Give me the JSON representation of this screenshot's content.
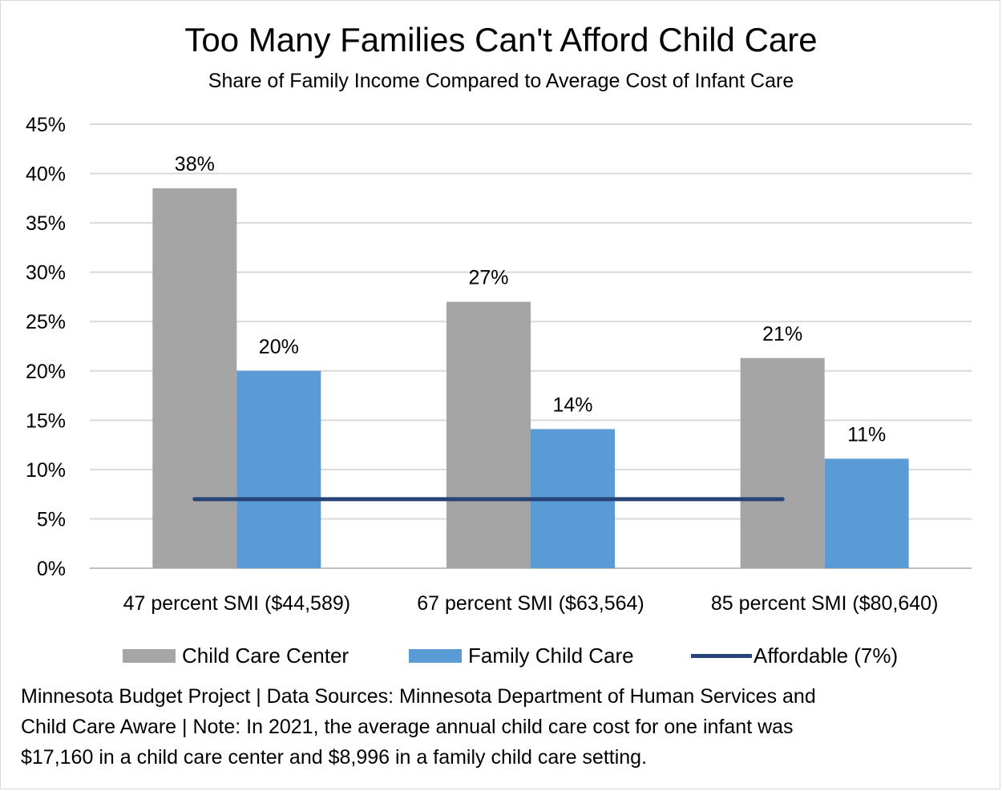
{
  "chart_data": {
    "type": "bar",
    "title": "Too Many Families Can't Afford Child Care",
    "subtitle": "Share of Family Income Compared to Average Cost of Infant Care",
    "categories": [
      "47 percent SMI ($44,589)",
      "67 percent SMI ($63,564)",
      "85 percent SMI ($80,640)"
    ],
    "series": [
      {
        "name": "Child Care Center",
        "type": "bar",
        "values": [
          38.5,
          27.0,
          21.3
        ],
        "labels": [
          "38%",
          "27%",
          "21%"
        ],
        "color": "#a5a5a5"
      },
      {
        "name": "Family Child Care",
        "type": "bar",
        "values": [
          20.0,
          14.1,
          11.1
        ],
        "labels": [
          "20%",
          "14%",
          "11%"
        ],
        "color": "#5b9bd5"
      },
      {
        "name": "Affordable (7%)",
        "type": "line",
        "values": [
          7,
          7,
          7
        ],
        "color": "#264478"
      }
    ],
    "yticks": [
      "0%",
      "5%",
      "10%",
      "15%",
      "20%",
      "25%",
      "30%",
      "35%",
      "40%",
      "45%"
    ],
    "ylim": [
      0,
      45
    ],
    "grid": true,
    "legend_position": "bottom",
    "note": [
      "Minnesota Budget Project | Data Sources: Minnesota Department of Human Services and",
      "Child Care Aware | Note:  In 2021, the average annual child care cost for one infant was",
      "$17,160 in a child care center and $8,996 in a family child care setting."
    ]
  }
}
